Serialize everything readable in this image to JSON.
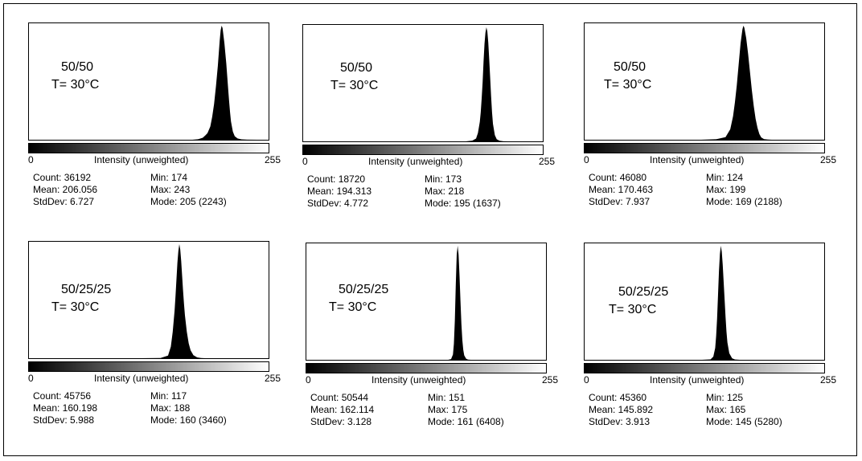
{
  "chart_data": [
    {
      "type": "area",
      "annotation_line1": "50/50",
      "annotation_line2": "T= 30°C",
      "xlabel": "Intensity (unweighted)",
      "xlim": [
        0,
        255
      ],
      "x_min_label": "0",
      "x_max_label": "255",
      "stats": {
        "count": "Count: 36192",
        "mean": "Mean: 206.056",
        "stddev": "StdDev: 6.727",
        "min": "Min: 174",
        "max": "Max: 243",
        "mode": "Mode: 205 (2243)"
      },
      "x": [
        174,
        180,
        185,
        188,
        190,
        193,
        195,
        197,
        199,
        200,
        201,
        202,
        203,
        204,
        205,
        206,
        207,
        208,
        209,
        210,
        211,
        212,
        213,
        214,
        215,
        217,
        219,
        222,
        226,
        232,
        243
      ],
      "y": [
        0,
        10,
        40,
        90,
        130,
        260,
        450,
        700,
        1050,
        1250,
        1450,
        1700,
        1950,
        2150,
        2243,
        2200,
        2050,
        1900,
        1700,
        1500,
        1250,
        1000,
        760,
        540,
        360,
        160,
        70,
        25,
        8,
        2,
        0
      ]
    },
    {
      "type": "area",
      "annotation_line1": "50/50",
      "annotation_line2": "T= 30°C",
      "xlabel": "Intensity (unweighted)",
      "xlim": [
        0,
        255
      ],
      "x_min_label": "0",
      "x_max_label": "255",
      "stats": {
        "count": "Count: 18720",
        "mean": "Mean: 194.313",
        "stddev": "StdDev: 4.772",
        "min": "Min: 173",
        "max": "Max: 218",
        "mode": "Mode: 195 (1637)"
      },
      "x": [
        173,
        180,
        184,
        186,
        188,
        189,
        190,
        191,
        192,
        193,
        194,
        195,
        196,
        197,
        198,
        199,
        200,
        201,
        202,
        204,
        206,
        209,
        213,
        218
      ],
      "y": [
        0,
        10,
        40,
        120,
        280,
        420,
        620,
        850,
        1150,
        1400,
        1560,
        1637,
        1580,
        1420,
        1180,
        920,
        650,
        420,
        250,
        90,
        30,
        8,
        2,
        0
      ]
    },
    {
      "type": "area",
      "annotation_line1": "50/50",
      "annotation_line2": "T= 30°C",
      "xlabel": "Intensity (unweighted)",
      "xlim": [
        0,
        255
      ],
      "x_min_label": "0",
      "x_max_label": "255",
      "stats": {
        "count": "Count: 46080",
        "mean": "Mean: 170.463",
        "stddev": "StdDev: 7.937",
        "min": "Min: 124",
        "max": "Max: 199",
        "mode": "Mode: 169 (2188)"
      },
      "x": [
        124,
        140,
        150,
        155,
        158,
        160,
        162,
        164,
        166,
        168,
        169,
        170,
        172,
        174,
        176,
        178,
        180,
        182,
        184,
        186,
        188,
        191,
        195,
        199
      ],
      "y": [
        0,
        10,
        50,
        200,
        450,
        720,
        1050,
        1450,
        1850,
        2120,
        2188,
        2150,
        1950,
        1650,
        1300,
        950,
        650,
        400,
        230,
        110,
        45,
        12,
        3,
        0
      ]
    },
    {
      "type": "area",
      "annotation_line1": "50/25/25",
      "annotation_line2": "T= 30°C",
      "xlabel": "Intensity (unweighted)",
      "xlim": [
        0,
        255
      ],
      "x_min_label": "0",
      "x_max_label": "255",
      "stats": {
        "count": "Count: 45756",
        "mean": "Mean: 160.198",
        "stddev": "StdDev: 5.988",
        "min": "Min: 117",
        "max": "Max: 188",
        "mode": "Mode: 160 (3460)"
      },
      "x": [
        117,
        140,
        148,
        151,
        153,
        155,
        156,
        157,
        158,
        159,
        160,
        161,
        162,
        163,
        164,
        165,
        166,
        168,
        170,
        172,
        175,
        179,
        183,
        188
      ],
      "y": [
        0,
        5,
        80,
        350,
        800,
        1450,
        1900,
        2400,
        2900,
        3250,
        3460,
        3300,
        2950,
        2500,
        2050,
        1650,
        1300,
        800,
        450,
        240,
        90,
        25,
        6,
        0
      ]
    },
    {
      "type": "area",
      "annotation_line1": "50/25/25",
      "annotation_line2": "T= 30°C",
      "xlabel": "Intensity (unweighted)",
      "xlim": [
        0,
        255
      ],
      "x_min_label": "0",
      "x_max_label": "255",
      "stats": {
        "count": "Count: 50544",
        "mean": "Mean: 162.114",
        "stddev": "StdDev: 3.128",
        "min": "Min: 151",
        "max": "Max: 175",
        "mode": "Mode: 161 (6408)"
      },
      "x": [
        151,
        154,
        156,
        157,
        158,
        159,
        160,
        161,
        162,
        163,
        164,
        165,
        166,
        167,
        168,
        170,
        172,
        175
      ],
      "y": [
        0,
        40,
        300,
        900,
        2200,
        4200,
        5900,
        6408,
        5900,
        4700,
        3300,
        2000,
        1100,
        550,
        250,
        60,
        10,
        0
      ]
    },
    {
      "type": "area",
      "annotation_line1": "50/25/25",
      "annotation_line2": "T= 30°C",
      "xlabel": "Intensity (unweighted)",
      "xlim": [
        0,
        255
      ],
      "x_min_label": "0",
      "x_max_label": "255",
      "stats": {
        "count": "Count: 45360",
        "mean": "Mean: 145.892",
        "stddev": "StdDev: 3.913",
        "min": "Min: 125",
        "max": "Max: 165",
        "mode": "Mode: 145 (5280)"
      },
      "x": [
        125,
        134,
        137,
        139,
        140,
        141,
        142,
        143,
        144,
        145,
        146,
        147,
        148,
        149,
        150,
        151,
        152,
        154,
        157,
        160,
        165
      ],
      "y": [
        0,
        20,
        150,
        550,
        1100,
        1900,
        3000,
        4100,
        4900,
        5280,
        5000,
        4400,
        3600,
        2800,
        2000,
        1300,
        800,
        300,
        70,
        15,
        0
      ]
    }
  ]
}
